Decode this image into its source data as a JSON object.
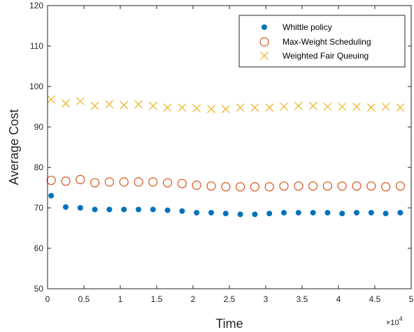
{
  "chart_data": {
    "type": "scatter",
    "title": "",
    "xlabel": "Time",
    "ylabel": "Average Cost",
    "x_exponent_label": "×10",
    "x_exponent_power": "4",
    "xlim": [
      0,
      5
    ],
    "ylim": [
      50,
      120
    ],
    "x_ticks": [
      "0",
      "0.5",
      "1",
      "1.5",
      "2",
      "2.5",
      "3",
      "3.5",
      "4",
      "4.5",
      "5"
    ],
    "y_ticks": [
      "50",
      "60",
      "70",
      "80",
      "90",
      "100",
      "110",
      "120"
    ],
    "grid": false,
    "legend_position": "top-right",
    "x": [
      0.05,
      0.25,
      0.45,
      0.65,
      0.85,
      1.05,
      1.25,
      1.45,
      1.65,
      1.85,
      2.05,
      2.25,
      2.45,
      2.65,
      2.85,
      3.05,
      3.25,
      3.45,
      3.65,
      3.85,
      4.05,
      4.25,
      4.45,
      4.65,
      4.85
    ],
    "series": [
      {
        "name": "Whittle policy",
        "marker": "dot",
        "color": "#0072BD",
        "values": [
          73,
          70.2,
          70,
          69.6,
          69.6,
          69.6,
          69.6,
          69.6,
          69.4,
          69.2,
          68.8,
          68.8,
          68.6,
          68.4,
          68.4,
          68.6,
          68.8,
          68.8,
          68.8,
          68.8,
          68.6,
          68.8,
          68.8,
          68.6,
          68.8
        ]
      },
      {
        "name": "Max-Weight Scheduling",
        "marker": "circle",
        "color": "#D95319",
        "values": [
          76.8,
          76.6,
          77,
          76.2,
          76.4,
          76.4,
          76.4,
          76.4,
          76.2,
          76,
          75.6,
          75.4,
          75.2,
          75.2,
          75.2,
          75.2,
          75.4,
          75.4,
          75.4,
          75.4,
          75.4,
          75.4,
          75.4,
          75.2,
          75.4
        ]
      },
      {
        "name": "Weighted Fair Queuing",
        "marker": "x",
        "color": "#EDB120",
        "values": [
          96.8,
          95.8,
          96.4,
          95.2,
          95.6,
          95.4,
          95.6,
          95.2,
          94.8,
          94.8,
          94.6,
          94.4,
          94.4,
          94.8,
          94.8,
          94.8,
          95,
          95.2,
          95.2,
          95,
          95,
          95,
          94.8,
          95,
          94.8
        ]
      }
    ]
  }
}
